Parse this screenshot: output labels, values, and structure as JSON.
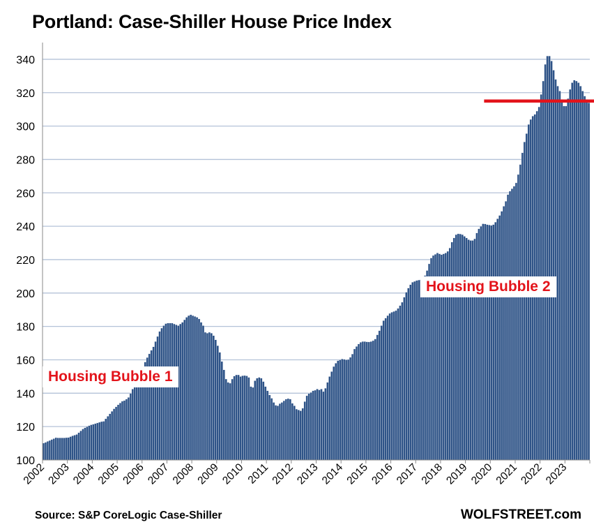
{
  "chart_data": {
    "type": "bar",
    "title": "Portland: Case-Shiller House Price Index",
    "xlabel": "",
    "ylabel": "",
    "ylim": [
      100,
      350
    ],
    "y_ticks": [
      100,
      120,
      140,
      160,
      180,
      200,
      220,
      240,
      260,
      280,
      300,
      320,
      340
    ],
    "x_tick_labels": [
      "2002",
      "2003",
      "2004",
      "2005",
      "2006",
      "2007",
      "2008",
      "2009",
      "2010",
      "2011",
      "2012",
      "2013",
      "2014",
      "2015",
      "2016",
      "2017",
      "2018",
      "2019",
      "2020",
      "2021",
      "2022",
      "2023"
    ],
    "grid": true,
    "bar_color": "#2e5387",
    "start": "2002-01",
    "end": "2023-12",
    "frequency": "monthly",
    "values": [
      110.1,
      110.6,
      111.2,
      111.7,
      112.3,
      112.8,
      113.4,
      113.3,
      113.3,
      113.3,
      113.3,
      113.4,
      113.5,
      114.0,
      114.5,
      114.9,
      115.3,
      116.4,
      117.5,
      118.6,
      119.3,
      120.0,
      120.6,
      121.1,
      121.4,
      121.8,
      122.2,
      122.6,
      123.0,
      123.2,
      124.7,
      126.2,
      127.7,
      129.2,
      130.7,
      131.9,
      133.1,
      134.2,
      135.2,
      135.6,
      136.5,
      137.5,
      139.9,
      142.5,
      145.0,
      147.8,
      150.5,
      153.3,
      156.0,
      158.7,
      161.4,
      163.6,
      165.7,
      167.8,
      171.0,
      174.0,
      177.0,
      179.0,
      180.5,
      181.7,
      182.0,
      182.0,
      182.0,
      181.5,
      181.0,
      180.5,
      181.5,
      182.5,
      184.0,
      185.5,
      186.5,
      187.0,
      186.5,
      186.0,
      185.5,
      184.5,
      182.5,
      180.5,
      176.5,
      176.0,
      176.5,
      176.0,
      174.5,
      172.0,
      168.5,
      164.5,
      159.0,
      154.0,
      148.5,
      146.5,
      146.0,
      148.5,
      150.3,
      151.0,
      151.0,
      150.0,
      150.5,
      150.6,
      150.4,
      149.5,
      144.0,
      143.5,
      147.5,
      149.0,
      149.5,
      149.0,
      147.0,
      144.0,
      141.5,
      139.0,
      137.0,
      134.5,
      132.8,
      132.5,
      133.8,
      134.5,
      135.5,
      136.5,
      136.8,
      136.5,
      134.0,
      132.5,
      130.5,
      130.0,
      129.5,
      131.0,
      135.0,
      138.5,
      139.8,
      140.5,
      141.5,
      141.8,
      142.5,
      142.0,
      142.5,
      141.0,
      143.0,
      146.5,
      150.0,
      153.0,
      156.0,
      158.0,
      159.5,
      160.0,
      160.5,
      160.3,
      160.0,
      160.2,
      161.5,
      163.5,
      166.5,
      168.0,
      169.5,
      170.5,
      171.0,
      171.0,
      170.8,
      170.7,
      171.0,
      171.5,
      172.5,
      175.0,
      177.5,
      180.5,
      183.5,
      185.0,
      186.5,
      187.8,
      188.5,
      189.0,
      189.5,
      190.8,
      192.5,
      194.5,
      197.5,
      200.5,
      203.0,
      205.0,
      206.5,
      207.0,
      207.5,
      207.8,
      208.0,
      208.5,
      210.5,
      213.5,
      217.5,
      221.0,
      222.5,
      223.2,
      224.0,
      223.5,
      223.0,
      223.5,
      224.0,
      225.0,
      227.0,
      230.5,
      233.0,
      235.0,
      235.5,
      235.4,
      235.0,
      234.0,
      233.0,
      232.0,
      231.5,
      231.5,
      232.5,
      236.0,
      238.5,
      240.0,
      241.5,
      241.4,
      241.0,
      240.8,
      240.5,
      241.0,
      242.5,
      244.5,
      246.5,
      249.0,
      252.0,
      255.0,
      259.0,
      261.0,
      262.5,
      264.0,
      266.0,
      271.0,
      277.0,
      284.0,
      290.5,
      295.5,
      301.0,
      304.0,
      306.0,
      307.0,
      309.0,
      311.5,
      319.0,
      327.0,
      337.0,
      342.0,
      342.0,
      339.0,
      333.5,
      328.0,
      324.0,
      321.0,
      316.0,
      312.0,
      312.0,
      316.5,
      322.0,
      326.0,
      327.5,
      327.0,
      326.0,
      324.0,
      321.0,
      318.0,
      316.0,
      314.0
    ]
  },
  "reference_line": {
    "value": 315,
    "color": "#e3141b"
  },
  "annotations": {
    "bubble1": "Housing Bubble 1",
    "bubble2": "Housing Bubble 2"
  },
  "footer": {
    "source": "Source: S&P CoreLogic Case-Shiller",
    "brand": "WOLFSTREET.com"
  },
  "colors": {
    "grid": "#b4c2d8",
    "axis": "#8a8a8a",
    "text": "#000000"
  }
}
